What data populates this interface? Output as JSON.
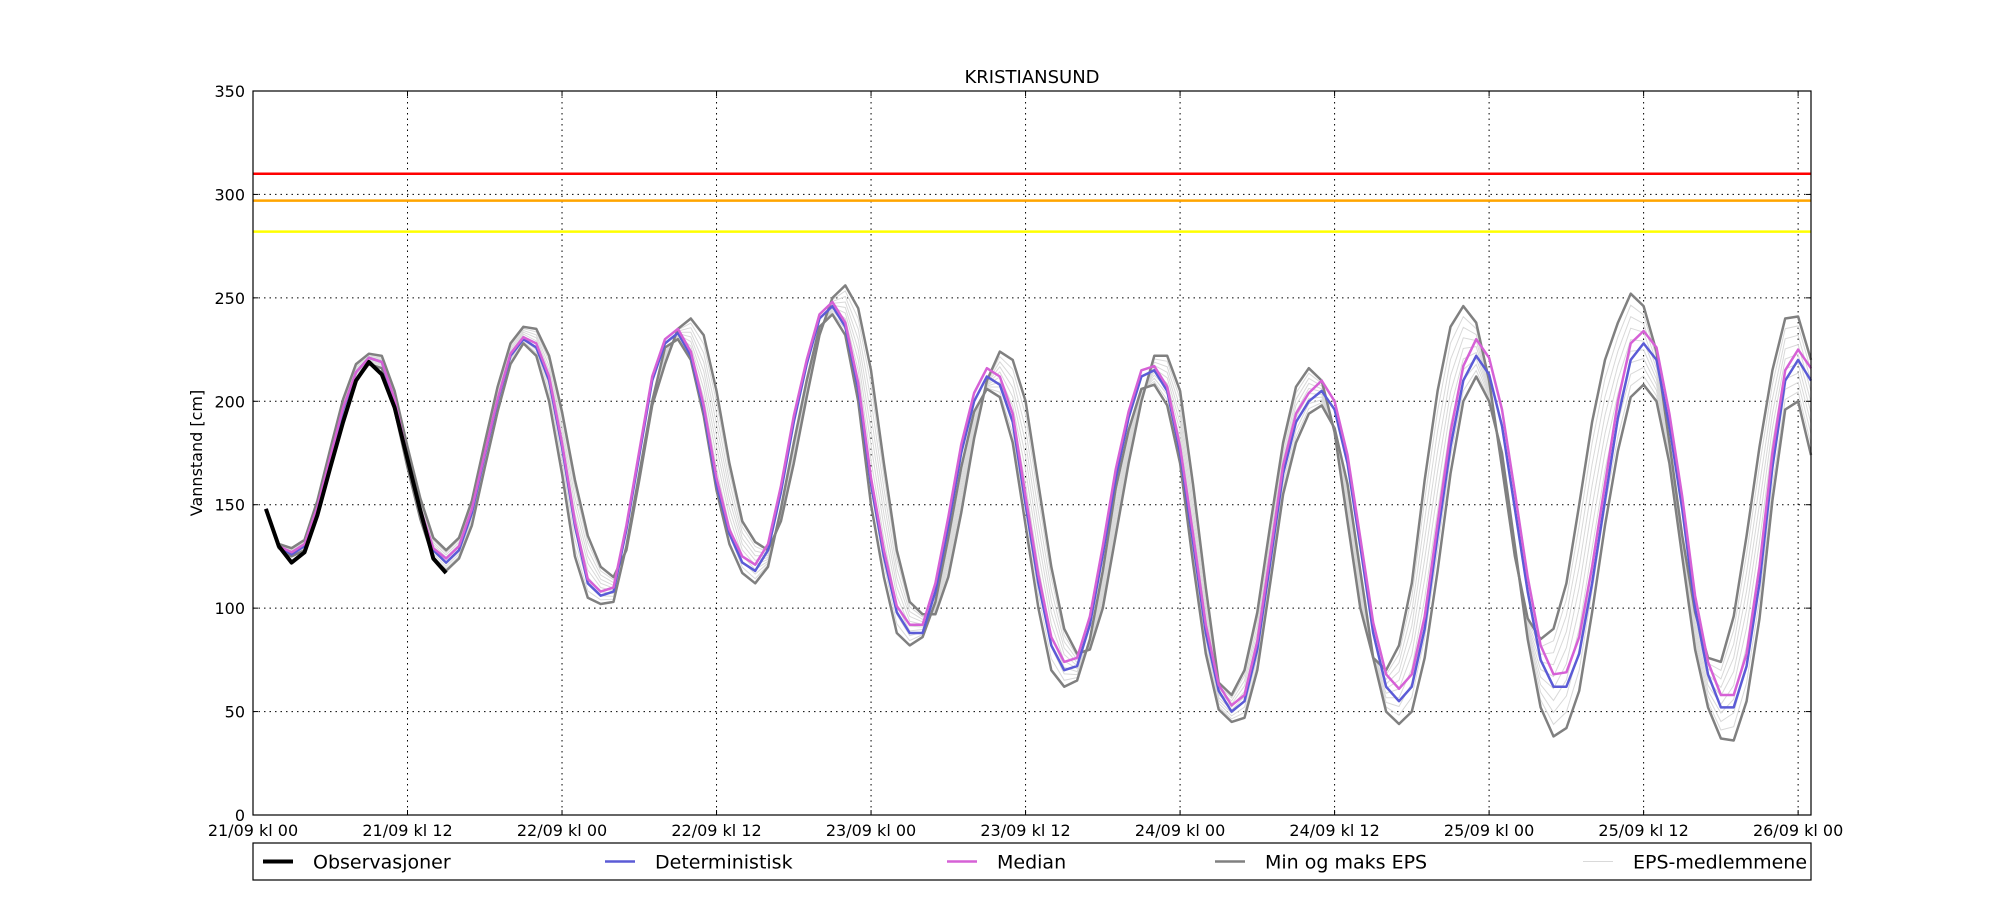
{
  "chart_data": {
    "type": "line",
    "title": "KRISTIANSUND",
    "xlabel": "",
    "ylabel": "Vannstand [cm]",
    "ylim": [
      0,
      350
    ],
    "yticks": [
      0,
      50,
      100,
      150,
      200,
      250,
      300,
      350
    ],
    "xlim": [
      0,
      121
    ],
    "xticks": [
      {
        "h": 0,
        "label": "21/09 kl 00"
      },
      {
        "h": 12,
        "label": "21/09 kl 12"
      },
      {
        "h": 24,
        "label": "22/09 kl 00"
      },
      {
        "h": 36,
        "label": "22/09 kl 12"
      },
      {
        "h": 48,
        "label": "23/09 kl 00"
      },
      {
        "h": 60,
        "label": "23/09 kl 12"
      },
      {
        "h": 72,
        "label": "24/09 kl 00"
      },
      {
        "h": 84,
        "label": "24/09 kl 12"
      },
      {
        "h": 96,
        "label": "25/09 kl 00"
      },
      {
        "h": 108,
        "label": "25/09 kl 12"
      },
      {
        "h": 120,
        "label": "26/09 kl 00"
      }
    ],
    "grid": true,
    "legend_position": "bottom",
    "thresholds": [
      {
        "value": 310,
        "color": "#ff0000"
      },
      {
        "value": 297,
        "color": "#ffa500"
      },
      {
        "value": 282,
        "color": "#ffff00"
      }
    ],
    "series": [
      {
        "name": "Observasjoner",
        "color": "#000000",
        "style": "observed",
        "x": [
          1,
          2,
          3,
          4,
          5,
          6,
          7,
          8,
          9,
          10,
          11,
          12,
          13,
          14,
          15
        ],
        "y": [
          148,
          130,
          122,
          127,
          145,
          168,
          190,
          210,
          219,
          213,
          197,
          172,
          147,
          124,
          117
        ]
      },
      {
        "name": "Deterministisk",
        "color": "#5b5bd6",
        "style": "deterministic",
        "x": [
          1,
          2,
          3,
          4,
          5,
          6,
          7,
          8,
          9,
          10,
          11,
          12,
          13,
          14,
          15,
          16,
          17,
          18,
          19,
          20,
          21,
          22,
          23,
          24,
          25,
          26,
          27,
          28,
          29,
          30,
          31,
          32,
          33,
          34,
          35,
          36,
          37,
          38,
          39,
          40,
          41,
          42,
          43,
          44,
          45,
          46,
          47,
          48,
          49,
          50,
          51,
          52,
          53,
          54,
          55,
          56,
          57,
          58,
          59,
          60,
          61,
          62,
          63,
          64,
          65,
          66,
          67,
          68,
          69,
          70,
          71,
          72,
          73,
          74,
          75,
          76,
          77,
          78,
          79,
          80,
          81,
          82,
          83,
          84,
          85,
          86,
          87,
          88,
          89,
          90,
          91,
          92,
          93,
          94,
          95,
          96,
          97,
          98,
          99,
          100,
          101,
          102,
          103,
          104,
          105,
          106,
          107,
          108,
          109,
          110,
          111,
          112,
          113,
          114,
          115,
          116,
          117,
          118,
          119,
          120,
          121
        ],
        "y": [
          148,
          130,
          126,
          130,
          148,
          172,
          196,
          214,
          221,
          219,
          200,
          172,
          147,
          128,
          122,
          128,
          146,
          174,
          200,
          222,
          230,
          226,
          210,
          178,
          140,
          112,
          106,
          108,
          138,
          174,
          210,
          228,
          233,
          222,
          196,
          160,
          136,
          122,
          118,
          128,
          156,
          190,
          218,
          240,
          246,
          236,
          206,
          160,
          125,
          98,
          88,
          88,
          108,
          140,
          175,
          200,
          212,
          208,
          190,
          150,
          112,
          82,
          70,
          72,
          92,
          126,
          163,
          192,
          212,
          215,
          205,
          175,
          132,
          88,
          60,
          50,
          55,
          80,
          122,
          165,
          190,
          200,
          205,
          196,
          170,
          130,
          88,
          62,
          55,
          62,
          90,
          135,
          178,
          210,
          222,
          213,
          188,
          148,
          108,
          75,
          62,
          62,
          78,
          112,
          152,
          192,
          220,
          228,
          220,
          188,
          148,
          100,
          68,
          52,
          52,
          72,
          112,
          168,
          210,
          220,
          210
        ]
      },
      {
        "name": "Median",
        "color": "#d661d6",
        "style": "median",
        "x": [
          1,
          2,
          3,
          4,
          5,
          6,
          7,
          8,
          9,
          10,
          11,
          12,
          13,
          14,
          15,
          16,
          17,
          18,
          19,
          20,
          21,
          22,
          23,
          24,
          25,
          26,
          27,
          28,
          29,
          30,
          31,
          32,
          33,
          34,
          35,
          36,
          37,
          38,
          39,
          40,
          41,
          42,
          43,
          44,
          45,
          46,
          47,
          48,
          49,
          50,
          51,
          52,
          53,
          54,
          55,
          56,
          57,
          58,
          59,
          60,
          61,
          62,
          63,
          64,
          65,
          66,
          67,
          68,
          69,
          70,
          71,
          72,
          73,
          74,
          75,
          76,
          77,
          78,
          79,
          80,
          81,
          82,
          83,
          84,
          85,
          86,
          87,
          88,
          89,
          90,
          91,
          92,
          93,
          94,
          95,
          96,
          97,
          98,
          99,
          100,
          101,
          102,
          103,
          104,
          105,
          106,
          107,
          108,
          109,
          110,
          111,
          112,
          113,
          114,
          115,
          116,
          117,
          118,
          119,
          120,
          121
        ],
        "y": [
          148,
          130,
          127,
          131,
          149,
          173,
          197,
          214,
          221,
          219,
          201,
          173,
          148,
          129,
          124,
          130,
          148,
          175,
          201,
          223,
          231,
          228,
          212,
          180,
          142,
          114,
          108,
          110,
          140,
          176,
          212,
          230,
          235,
          224,
          198,
          163,
          138,
          125,
          121,
          131,
          159,
          193,
          220,
          242,
          248,
          238,
          209,
          163,
          128,
          101,
          92,
          92,
          112,
          144,
          179,
          204,
          216,
          212,
          194,
          154,
          116,
          86,
          74,
          76,
          96,
          130,
          167,
          195,
          215,
          217,
          207,
          178,
          136,
          92,
          63,
          53,
          58,
          84,
          126,
          169,
          194,
          204,
          210,
          200,
          174,
          134,
          93,
          68,
          61,
          68,
          96,
          141,
          185,
          217,
          230,
          221,
          196,
          156,
          115,
          82,
          68,
          69,
          86,
          120,
          160,
          200,
          228,
          234,
          226,
          194,
          154,
          106,
          74,
          58,
          58,
          78,
          120,
          175,
          215,
          225,
          216
        ]
      },
      {
        "name": "Min og maks EPS",
        "color": "#808080",
        "style": "minmax",
        "x": [
          1,
          2,
          3,
          4,
          5,
          6,
          7,
          8,
          9,
          10,
          11,
          12,
          13,
          14,
          15,
          16,
          17,
          18,
          19,
          20,
          21,
          22,
          23,
          24,
          25,
          26,
          27,
          28,
          29,
          30,
          31,
          32,
          33,
          34,
          35,
          36,
          37,
          38,
          39,
          40,
          41,
          42,
          43,
          44,
          45,
          46,
          47,
          48,
          49,
          50,
          51,
          52,
          53,
          54,
          55,
          56,
          57,
          58,
          59,
          60,
          61,
          62,
          63,
          64,
          65,
          66,
          67,
          68,
          69,
          70,
          71,
          72,
          73,
          74,
          75,
          76,
          77,
          78,
          79,
          80,
          81,
          82,
          83,
          84,
          85,
          86,
          87,
          88,
          89,
          90,
          91,
          92,
          93,
          94,
          95,
          96,
          97,
          98,
          99,
          100,
          101,
          102,
          103,
          104,
          105,
          106,
          107,
          108,
          109,
          110,
          111,
          112,
          113,
          114,
          115,
          116,
          117,
          118,
          119,
          120,
          121
        ],
        "y_max": [
          148,
          131,
          129,
          133,
          152,
          177,
          201,
          218,
          223,
          222,
          205,
          178,
          153,
          134,
          128,
          134,
          152,
          180,
          207,
          228,
          236,
          235,
          222,
          195,
          162,
          135,
          120,
          115,
          128,
          162,
          198,
          218,
          235,
          240,
          232,
          205,
          170,
          142,
          132,
          128,
          142,
          170,
          202,
          232,
          250,
          256,
          245,
          215,
          170,
          128,
          103,
          97,
          97,
          115,
          146,
          182,
          210,
          224,
          220,
          200,
          160,
          120,
          90,
          78,
          80,
          100,
          135,
          170,
          200,
          222,
          222,
          205,
          160,
          110,
          64,
          58,
          70,
          98,
          140,
          180,
          207,
          216,
          210,
          185,
          142,
          100,
          76,
          70,
          82,
          112,
          162,
          205,
          236,
          246,
          238,
          210,
          168,
          125,
          95,
          85,
          90,
          112,
          150,
          190,
          220,
          238,
          252,
          246,
          224,
          180,
          135,
          98,
          76,
          74,
          96,
          135,
          178,
          215,
          240,
          241,
          220
        ],
        "y_min": [
          148,
          129,
          125,
          128,
          145,
          168,
          192,
          210,
          218,
          216,
          196,
          168,
          143,
          124,
          118,
          124,
          140,
          168,
          195,
          218,
          228,
          222,
          200,
          165,
          125,
          105,
          102,
          103,
          130,
          165,
          200,
          226,
          230,
          220,
          193,
          157,
          131,
          117,
          112,
          120,
          148,
          180,
          210,
          236,
          242,
          232,
          200,
          150,
          115,
          88,
          82,
          86,
          103,
          134,
          168,
          195,
          206,
          202,
          180,
          140,
          100,
          70,
          62,
          65,
          85,
          118,
          158,
          186,
          206,
          208,
          198,
          170,
          122,
          78,
          51,
          45,
          47,
          70,
          112,
          155,
          180,
          194,
          198,
          187,
          160,
          118,
          76,
          50,
          44,
          50,
          76,
          118,
          165,
          200,
          212,
          200,
          175,
          130,
          85,
          52,
          38,
          42,
          60,
          98,
          140,
          176,
          202,
          208,
          200,
          170,
          125,
          80,
          52,
          37,
          36,
          55,
          95,
          152,
          196,
          200,
          174
        ]
      },
      {
        "name": "EPS-medlemmene",
        "color": "#d9d9d9",
        "style": "members",
        "member_count": 8
      }
    ]
  }
}
